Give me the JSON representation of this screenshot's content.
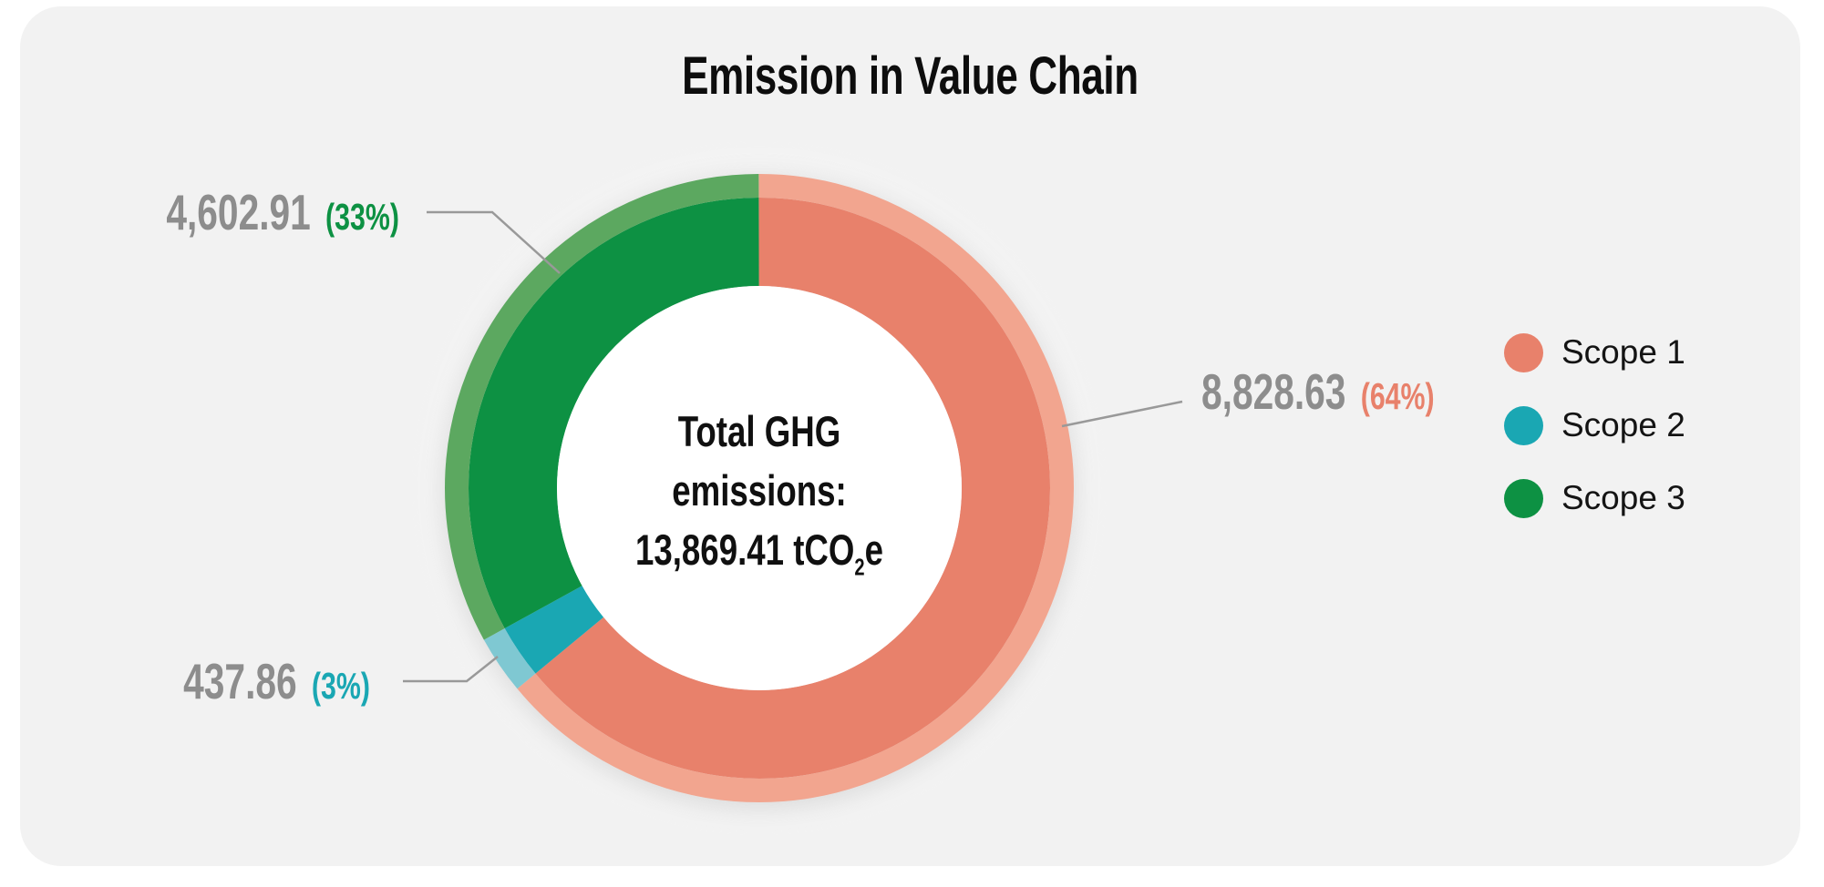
{
  "page": {
    "background": "#FFFFFF",
    "panel_background": "#F2F2F2"
  },
  "chart_data": {
    "type": "pie",
    "donut": true,
    "title": "Emission in Value Chain",
    "unit": "tCO2e",
    "total": 13869.41,
    "legend_position": "right",
    "start_angle": "top",
    "direction": "clockwise",
    "center_label": {
      "line1": "Total GHG",
      "line2": "emissions:",
      "line3_pre": "13,869.41 tCO",
      "line3_sub": "2",
      "line3_post": "e"
    },
    "series": [
      {
        "name": "Scope 1",
        "value": 8828.63,
        "percent": 64,
        "value_text": "8,828.63",
        "percent_text": "(64%)",
        "color": "#E8816B",
        "color_light": "#F2A58F"
      },
      {
        "name": "Scope 2",
        "value": 437.86,
        "percent": 3,
        "value_text": "437.86",
        "percent_text": "(3%)",
        "color": "#1AA7B3",
        "color_light": "#7FC8D2"
      },
      {
        "name": "Scope 3",
        "value": 4602.91,
        "percent": 33,
        "value_text": "4,602.91",
        "percent_text": "(33%)",
        "color": "#0D9143",
        "color_light": "#5CA860"
      }
    ],
    "colors": {
      "value_text": "#8D8D8D",
      "leader_line": "#999999",
      "title_text": "#0D0D0D",
      "center_text": "#101010",
      "legend_text": "#141414"
    }
  }
}
